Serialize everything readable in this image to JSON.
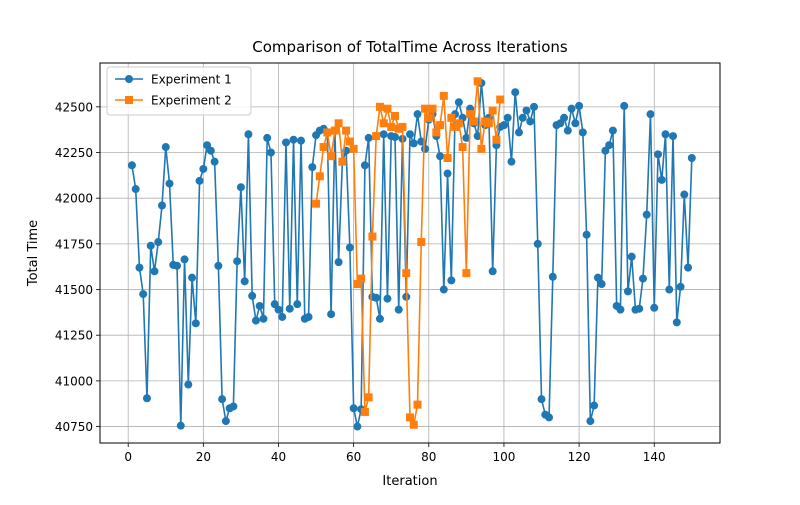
{
  "chart_data": {
    "type": "line",
    "title": "Comparison of TotalTime Across Iterations",
    "xlabel": "Iteration",
    "ylabel": "Total Time",
    "xlim": [
      -7.5,
      157.5
    ],
    "ylim": [
      40660,
      42740
    ],
    "xticks": [
      0,
      20,
      40,
      60,
      80,
      100,
      120,
      140
    ],
    "yticks": [
      40750,
      41000,
      41250,
      41500,
      41750,
      42000,
      42250,
      42500
    ],
    "grid": true,
    "legend_position": "top-left",
    "series": [
      {
        "name": "Experiment 1",
        "color": "#1f77b4",
        "marker": "circle",
        "x": [
          1,
          2,
          3,
          4,
          5,
          6,
          7,
          8,
          9,
          10,
          11,
          12,
          13,
          14,
          15,
          16,
          17,
          18,
          19,
          20,
          21,
          22,
          23,
          24,
          25,
          26,
          27,
          28,
          29,
          30,
          31,
          32,
          33,
          34,
          35,
          36,
          37,
          38,
          39,
          40,
          41,
          42,
          43,
          44,
          45,
          46,
          47,
          48,
          49,
          50,
          51,
          52,
          53,
          54,
          55,
          56,
          57,
          58,
          59,
          60,
          61,
          62,
          63,
          64,
          65,
          66,
          67,
          68,
          69,
          70,
          71,
          72,
          73,
          74,
          75,
          76,
          77,
          78,
          79,
          80,
          81,
          82,
          83,
          84,
          85,
          86,
          87,
          88,
          89,
          90,
          91,
          92,
          93,
          94,
          95,
          96,
          97,
          98,
          99,
          100,
          101,
          102,
          103,
          104,
          105,
          106,
          107,
          108,
          109,
          110,
          111,
          112,
          113,
          114,
          115,
          116,
          117,
          118,
          119,
          120,
          121,
          122,
          123,
          124,
          125,
          126,
          127,
          128,
          129,
          130,
          131,
          132,
          133,
          134,
          135,
          136,
          137,
          138,
          139,
          140,
          141,
          142,
          143,
          144,
          145,
          146,
          147,
          148,
          149,
          150
        ],
        "values": [
          42180,
          42050,
          41620,
          41475,
          40905,
          41740,
          41600,
          41760,
          41960,
          42280,
          42080,
          41635,
          41630,
          40755,
          41665,
          40980,
          41565,
          41315,
          42095,
          42160,
          42290,
          42260,
          42200,
          41630,
          40900,
          40780,
          40850,
          40860,
          41655,
          42060,
          41545,
          42350,
          41465,
          41330,
          41410,
          41340,
          42330,
          42250,
          41420,
          41390,
          41350,
          42305,
          41395,
          42320,
          41420,
          42315,
          41340,
          41350,
          42170,
          42345,
          42370,
          42380,
          42360,
          41365,
          42370,
          41650,
          42200,
          42260,
          41730,
          40850,
          40750,
          40845,
          42180,
          42330,
          41460,
          41455,
          41340,
          42350,
          41450,
          42340,
          42335,
          41390,
          42325,
          41460,
          42350,
          42300,
          42460,
          42310,
          42270,
          42430,
          42460,
          42340,
          42230,
          41500,
          42135,
          41550,
          42460,
          42525,
          42440,
          42330,
          42490,
          42410,
          42340,
          42630,
          42400,
          42440,
          41600,
          42290,
          42390,
          42400,
          42440,
          42200,
          42580,
          42360,
          42440,
          42480,
          42420,
          42500,
          41750,
          40900,
          40815,
          40800,
          41570,
          42400,
          42410,
          42440,
          42370,
          42490,
          42410,
          42505,
          42360,
          41800,
          40780,
          40865,
          41565,
          41530,
          42260,
          42290,
          42370,
          41410,
          41390,
          42505,
          41490,
          41680,
          41390,
          41395,
          41560,
          41910,
          42460,
          41400,
          42240,
          42100,
          42350,
          41500,
          42340,
          41320,
          41515,
          42020,
          41620,
          42220
        ]
      },
      {
        "name": "Experiment 2",
        "color": "#ff7f0e",
        "marker": "square",
        "x": [
          50,
          51,
          52,
          53,
          54,
          55,
          56,
          57,
          58,
          59,
          60,
          61,
          62,
          63,
          64,
          65,
          66,
          67,
          68,
          69,
          70,
          71,
          72,
          73,
          74,
          75,
          76,
          77,
          78,
          79,
          80,
          81,
          82,
          83,
          84,
          85,
          86,
          87,
          88,
          89,
          90,
          91,
          92,
          93,
          94,
          95,
          96,
          97,
          98,
          99
        ],
        "values": [
          41970,
          42120,
          42280,
          42360,
          42230,
          42370,
          42410,
          42200,
          42370,
          42310,
          42270,
          41530,
          41560,
          40830,
          40910,
          41790,
          42340,
          42500,
          42410,
          42490,
          42390,
          42450,
          42380,
          42390,
          41590,
          40800,
          40760,
          40870,
          41760,
          42490,
          42440,
          42490,
          42360,
          42400,
          42560,
          42220,
          42440,
          42390,
          42410,
          42280,
          41590,
          42460,
          42420,
          42640,
          42270,
          42420,
          42410,
          42480,
          42320,
          42540
        ]
      }
    ]
  }
}
